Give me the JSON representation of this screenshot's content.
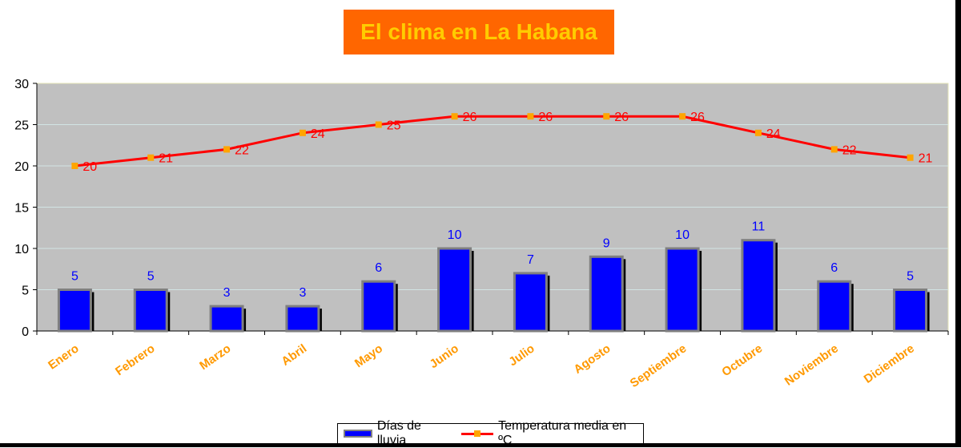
{
  "title": "El clima en La Habana",
  "colors": {
    "title_bg": "#ff6600",
    "title_text": "#ffcc00",
    "plot_bg": "#c0c0c0",
    "bar_fill": "#0000ff",
    "bar_border": "#808080",
    "line": "#ff0000",
    "marker": "#ffa500",
    "bar_label": "#0000ff",
    "line_label": "#ff0000",
    "category_label": "#ff9900"
  },
  "legend": {
    "bar_label": "Días de lluvia",
    "line_label": "Temperatura media en ºC"
  },
  "chart_data": {
    "type": "bar",
    "categories": [
      "Enero",
      "Febrero",
      "Marzo",
      "Abril",
      "Mayo",
      "Junio",
      "Julio",
      "Agosto",
      "Septiembre",
      "Octubre",
      "Noviembre",
      "Diciembre"
    ],
    "series": [
      {
        "name": "Días de lluvia",
        "type": "bar",
        "values": [
          5,
          5,
          3,
          3,
          6,
          10,
          7,
          9,
          10,
          11,
          6,
          5
        ]
      },
      {
        "name": "Temperatura media en ºC",
        "type": "line",
        "values": [
          20,
          21,
          22,
          24,
          25,
          26,
          26,
          26,
          26,
          24,
          22,
          21
        ]
      }
    ],
    "ylim": [
      0,
      30
    ],
    "yticks": [
      0,
      5,
      10,
      15,
      20,
      25,
      30
    ],
    "grid": true,
    "legend_position": "bottom",
    "title": "El clima en La Habana"
  }
}
